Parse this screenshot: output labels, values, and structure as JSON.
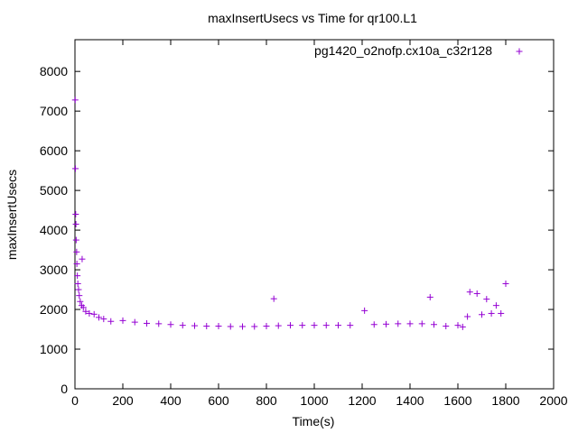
{
  "chart_data": {
    "type": "scatter",
    "title": "maxInsertUsecs vs Time for qr100.L1",
    "xlabel": "Time(s)",
    "ylabel": "maxInsertUsecs",
    "xlim": [
      0,
      2000
    ],
    "ylim": [
      0,
      8800
    ],
    "x_ticks": [
      "0",
      "200",
      "400",
      "600",
      "800",
      "1000",
      "1200",
      "1400",
      "1600",
      "1800",
      "2000"
    ],
    "y_ticks": [
      "0",
      "1000",
      "2000",
      "3000",
      "4000",
      "5000",
      "6000",
      "7000",
      "8000"
    ],
    "grid": false,
    "legend_position": "top-right",
    "marker": "+",
    "series": [
      {
        "name": "pg1420_o2nofp.cx10a_c32r128",
        "color": "#9400d3",
        "points": [
          [
            1,
            7280
          ],
          [
            2,
            5550
          ],
          [
            3,
            4400
          ],
          [
            4,
            4150
          ],
          [
            5,
            3750
          ],
          [
            7,
            3450
          ],
          [
            8,
            3150
          ],
          [
            10,
            2850
          ],
          [
            12,
            2650
          ],
          [
            15,
            2500
          ],
          [
            18,
            2350
          ],
          [
            22,
            2200
          ],
          [
            28,
            2100
          ],
          [
            30,
            3270
          ],
          [
            35,
            2050
          ],
          [
            45,
            1950
          ],
          [
            60,
            1900
          ],
          [
            80,
            1880
          ],
          [
            100,
            1800
          ],
          [
            120,
            1760
          ],
          [
            150,
            1700
          ],
          [
            200,
            1720
          ],
          [
            250,
            1680
          ],
          [
            300,
            1650
          ],
          [
            350,
            1640
          ],
          [
            400,
            1620
          ],
          [
            450,
            1600
          ],
          [
            500,
            1590
          ],
          [
            550,
            1580
          ],
          [
            600,
            1580
          ],
          [
            650,
            1570
          ],
          [
            700,
            1570
          ],
          [
            750,
            1570
          ],
          [
            800,
            1580
          ],
          [
            831,
            2270
          ],
          [
            850,
            1590
          ],
          [
            900,
            1600
          ],
          [
            950,
            1600
          ],
          [
            1000,
            1600
          ],
          [
            1050,
            1600
          ],
          [
            1100,
            1600
          ],
          [
            1150,
            1600
          ],
          [
            1210,
            1970
          ],
          [
            1250,
            1620
          ],
          [
            1300,
            1630
          ],
          [
            1350,
            1640
          ],
          [
            1400,
            1640
          ],
          [
            1450,
            1640
          ],
          [
            1484,
            2310
          ],
          [
            1500,
            1620
          ],
          [
            1550,
            1580
          ],
          [
            1600,
            1600
          ],
          [
            1620,
            1560
          ],
          [
            1640,
            1820
          ],
          [
            1650,
            2440
          ],
          [
            1680,
            2400
          ],
          [
            1700,
            1870
          ],
          [
            1720,
            2260
          ],
          [
            1740,
            1900
          ],
          [
            1760,
            2100
          ],
          [
            1780,
            1900
          ],
          [
            1800,
            2650
          ]
        ]
      }
    ]
  }
}
